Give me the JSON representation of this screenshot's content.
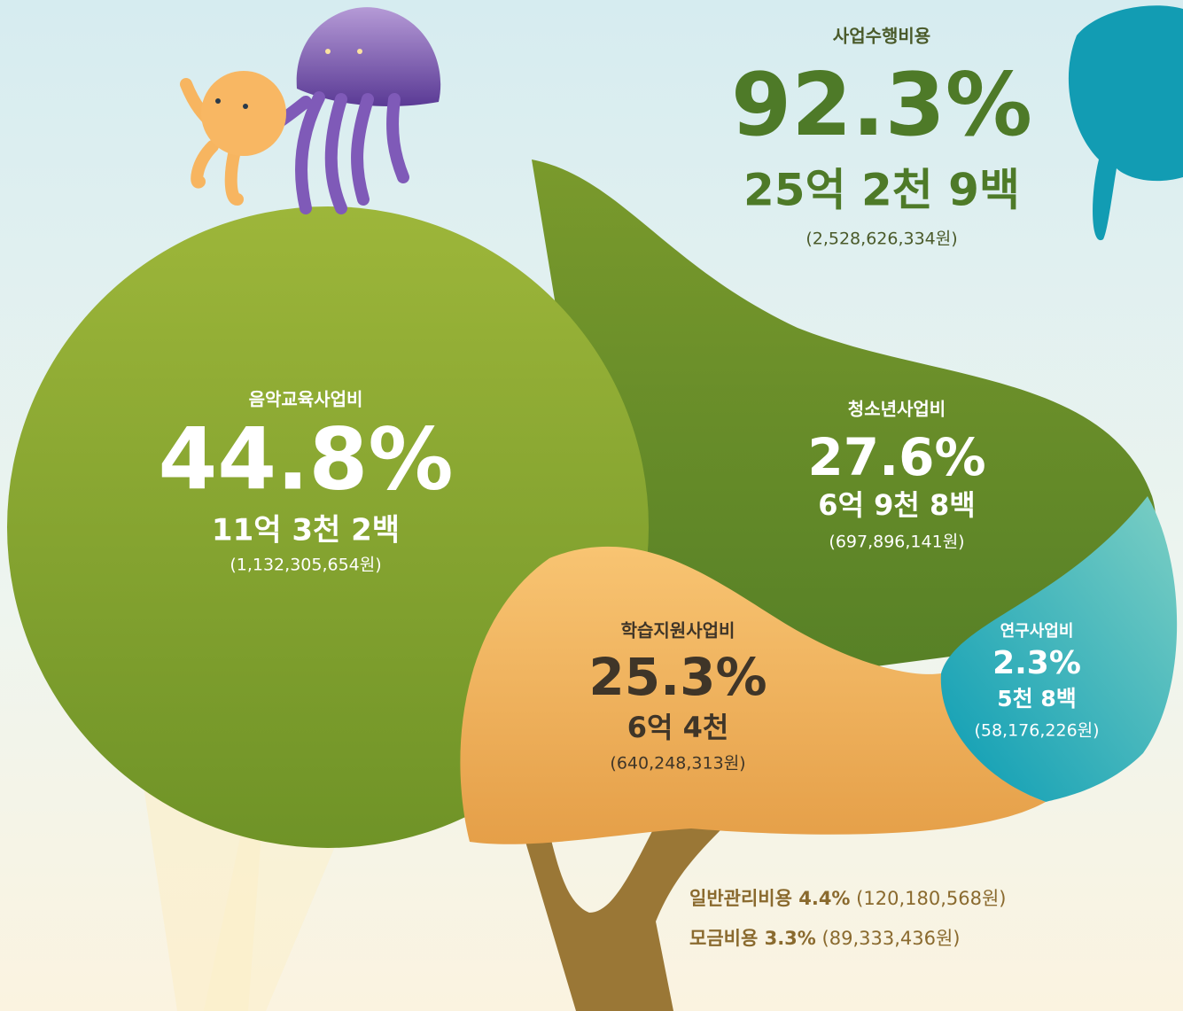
{
  "summary": {
    "label": "사업수행비용",
    "percent": "92.3%",
    "amount": "25억 2천 9백",
    "detail": "(2,528,626,334원)"
  },
  "segments": [
    {
      "label": "음악교육사업비",
      "percent": "44.8%",
      "amount": "11억 3천 2백",
      "detail": "(1,132,305,654원)"
    },
    {
      "label": "청소년사업비",
      "percent": "27.6%",
      "amount": "6억 9천 8백",
      "detail": "(697,896,141원)"
    },
    {
      "label": "학습지원사업비",
      "percent": "25.3%",
      "amount": "6억 4천",
      "detail": "(640,248,313원)"
    },
    {
      "label": "연구사업비",
      "percent": "2.3%",
      "amount": "5천 8백",
      "detail": "(58,176,226원)"
    }
  ],
  "others": [
    {
      "label": "일반관리비용 4.4%",
      "detail": "(120,180,568원)"
    },
    {
      "label": "모금비용 3.3%",
      "detail": "(89,333,436원)"
    }
  ]
}
